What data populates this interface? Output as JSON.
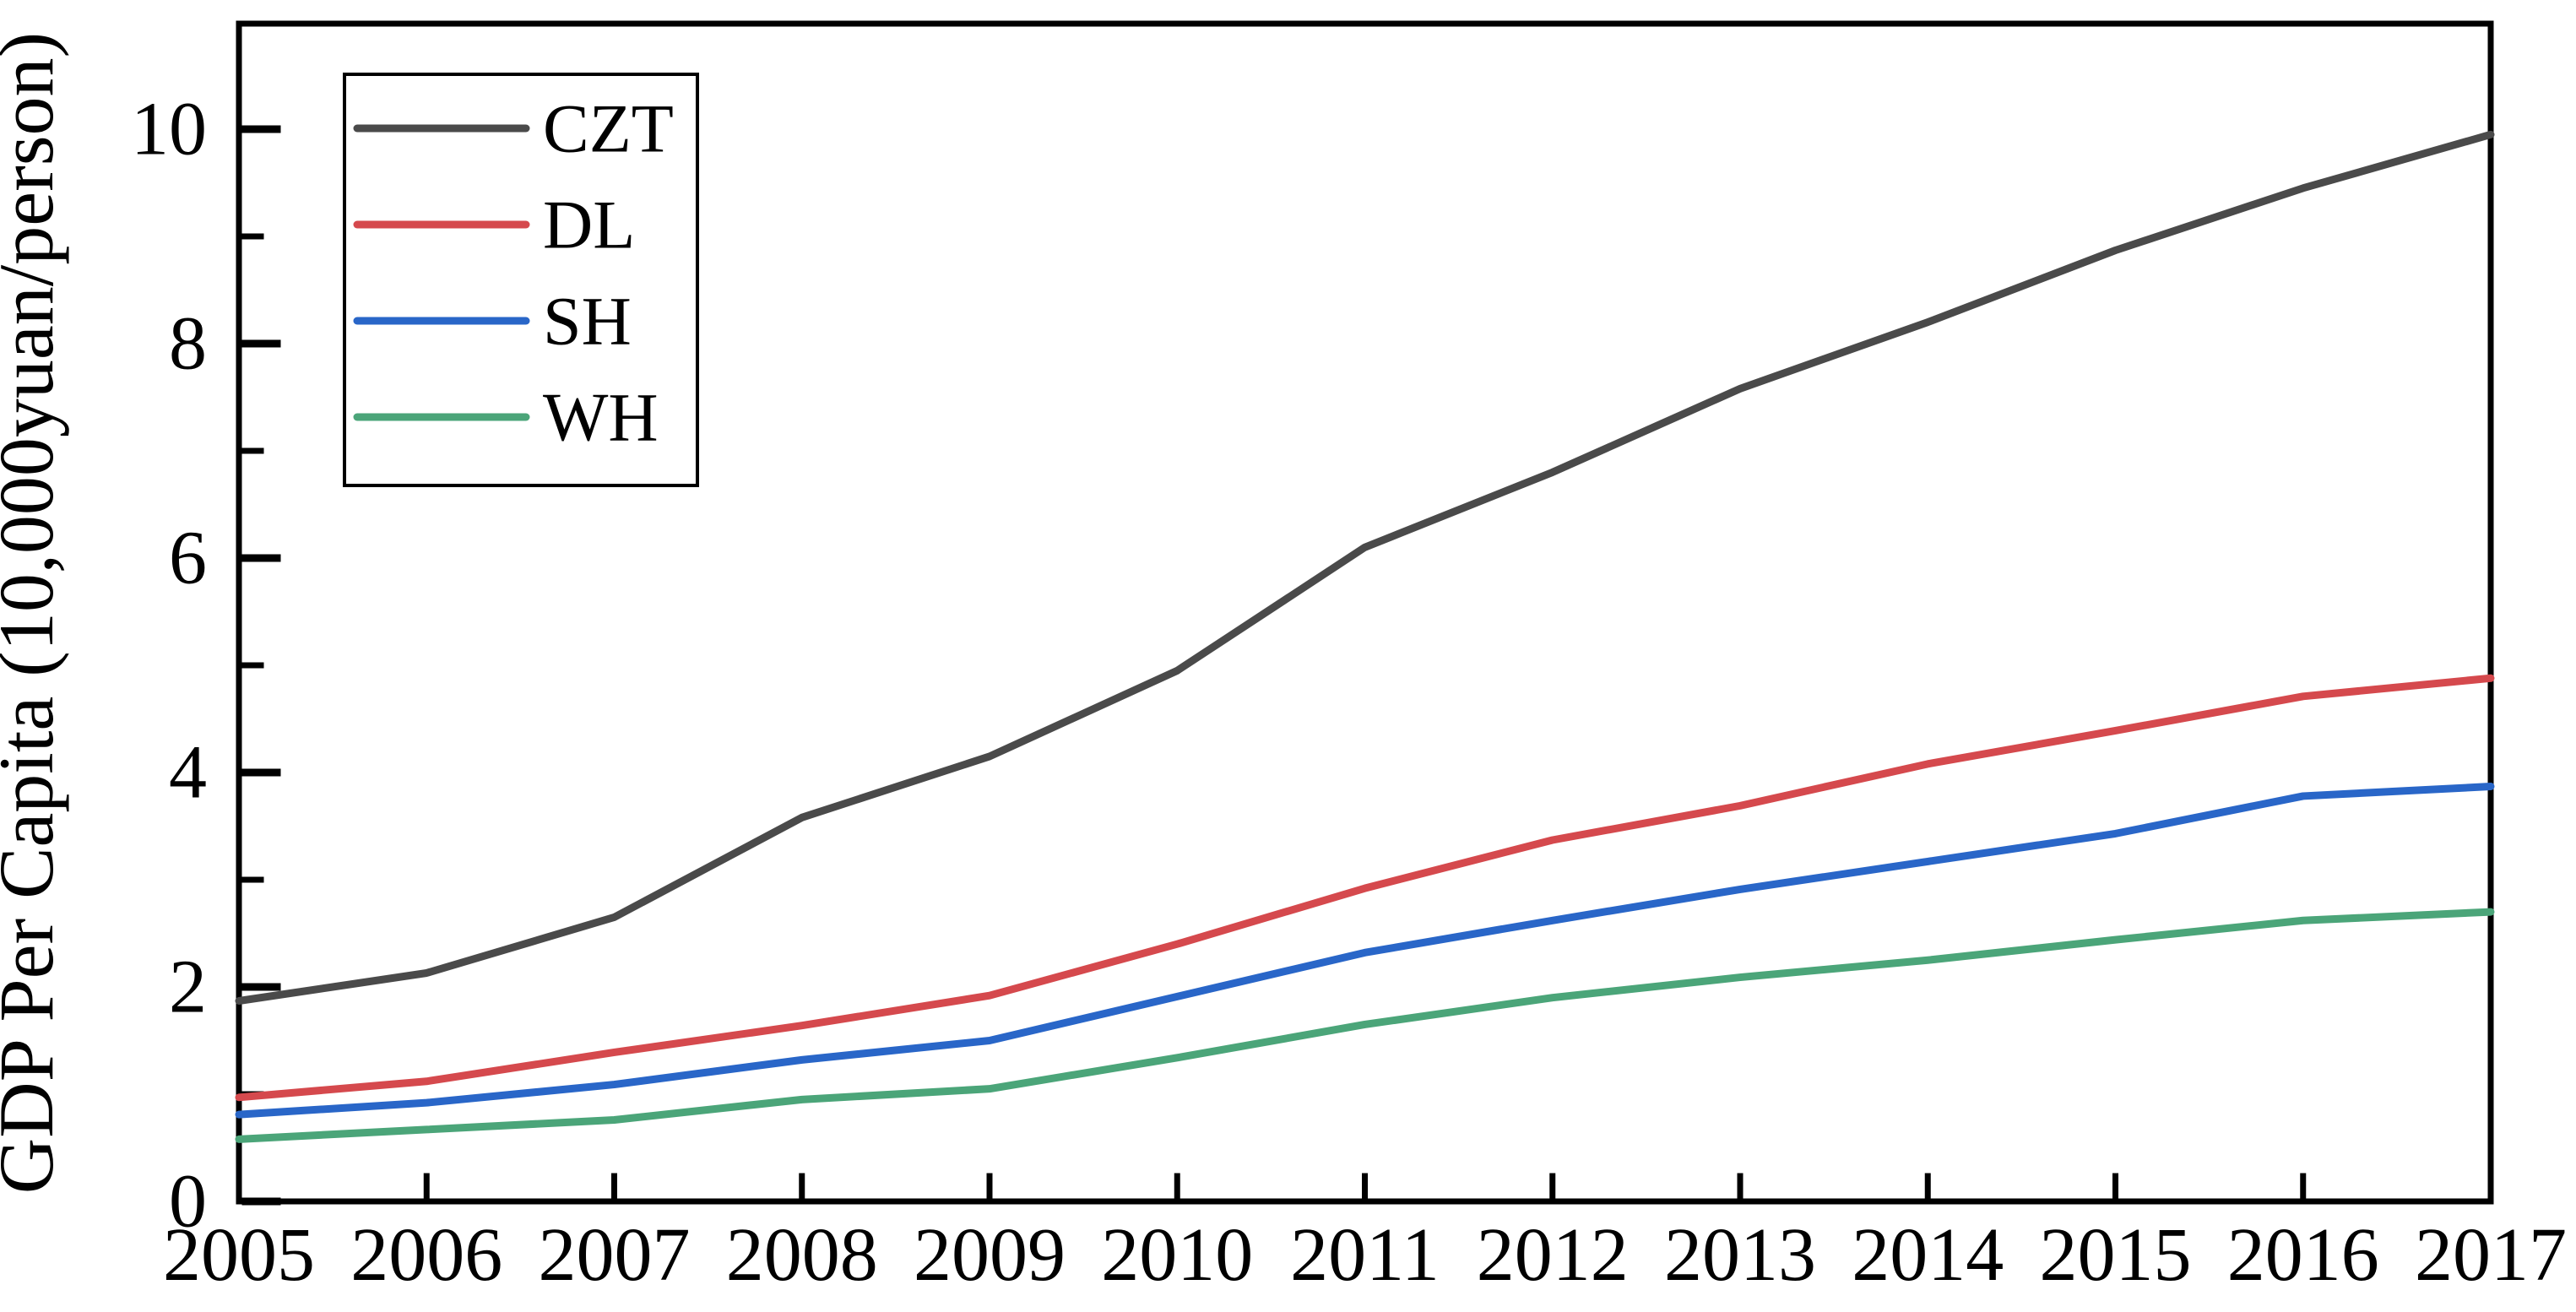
{
  "figure": {
    "background": "#ffffff",
    "frame_color": "#000000",
    "text_color": "#000000"
  },
  "chart_data": {
    "type": "line",
    "title": "",
    "xlabel": "",
    "ylabel": "GDP Per Capita (10,000yuan/person)",
    "x": [
      2005,
      2006,
      2007,
      2008,
      2009,
      2010,
      2011,
      2012,
      2013,
      2014,
      2015,
      2016,
      2017
    ],
    "xtick_labels": [
      "2005",
      "2006",
      "2007",
      "2008",
      "2009",
      "2010",
      "2011",
      "2012",
      "2013",
      "2014",
      "2015",
      "2016",
      "2017"
    ],
    "ylim": [
      0,
      11
    ],
    "ytick_major": [
      0,
      2,
      4,
      6,
      8,
      10
    ],
    "ytick_minor": [
      1,
      3,
      5,
      7,
      9
    ],
    "grid": false,
    "legend": {
      "position": "upper-left",
      "entries": [
        "CZT",
        "DL",
        "SH",
        "WH"
      ]
    },
    "series": [
      {
        "name": "CZT",
        "color": "#4a4a4a",
        "values": [
          1.87,
          2.13,
          2.65,
          3.58,
          4.15,
          4.95,
          6.1,
          6.8,
          7.58,
          8.2,
          8.87,
          9.45,
          9.95
        ]
      },
      {
        "name": "DL",
        "color": "#d5494d",
        "values": [
          0.97,
          1.12,
          1.39,
          1.64,
          1.92,
          2.4,
          2.92,
          3.37,
          3.69,
          4.08,
          4.39,
          4.71,
          4.88
        ]
      },
      {
        "name": "SH",
        "color": "#2966c8",
        "values": [
          0.81,
          0.92,
          1.09,
          1.32,
          1.5,
          1.91,
          2.32,
          2.62,
          2.91,
          3.17,
          3.43,
          3.78,
          3.87
        ]
      },
      {
        "name": "WH",
        "color": "#4ba579",
        "values": [
          0.58,
          0.67,
          0.76,
          0.95,
          1.05,
          1.34,
          1.65,
          1.9,
          2.09,
          2.25,
          2.44,
          2.62,
          2.7
        ]
      }
    ]
  }
}
